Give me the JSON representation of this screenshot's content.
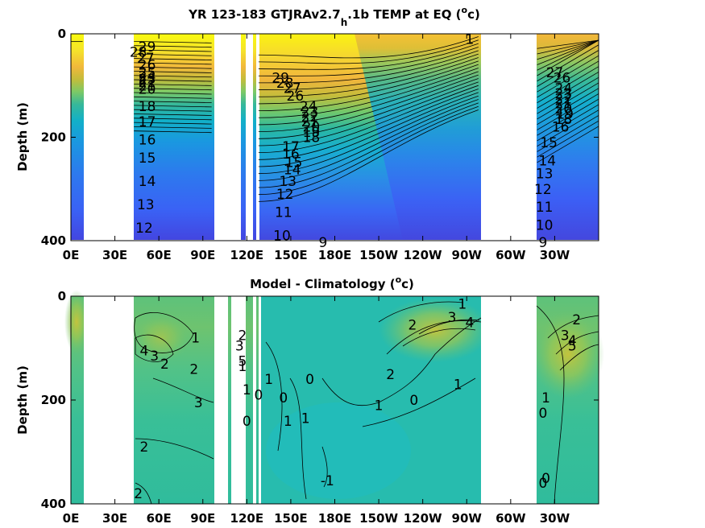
{
  "chart_data": [
    {
      "type": "heatmap",
      "title_main": "YR 123-183 GTJRAv2.7",
      "title_sub": "h",
      "title_tail": ".1b TEMP at EQ (",
      "title_unit_sup": "o",
      "title_unit_tail": "c)",
      "ylabel": "Depth (m)",
      "xlabel": "",
      "x_ticks": [
        "0E",
        "30E",
        "60E",
        "90E",
        "120E",
        "150E",
        "180E",
        "150W",
        "120W",
        "90W",
        "60W",
        "30W"
      ],
      "y_ticks": [
        "0",
        "200",
        "400"
      ],
      "xlim_deg_east": [
        0,
        360
      ],
      "ylim_m": [
        0,
        400
      ],
      "colormap": "parula",
      "clim": [
        8,
        30
      ],
      "land_gaps_deg_east": [
        [
          8,
          43
        ],
        [
          96,
          113
        ],
        [
          119,
          121
        ],
        [
          126,
          128
        ],
        [
          278,
          318
        ]
      ],
      "contour_labels": [
        {
          "text": "29",
          "lon": 52,
          "depth": 25
        },
        {
          "text": "28",
          "lon": 46,
          "depth": 35
        },
        {
          "text": "27",
          "lon": 51,
          "depth": 47
        },
        {
          "text": "26",
          "lon": 52,
          "depth": 60
        },
        {
          "text": "25",
          "lon": 52,
          "depth": 75
        },
        {
          "text": "24",
          "lon": 52,
          "depth": 82
        },
        {
          "text": "23",
          "lon": 52,
          "depth": 87
        },
        {
          "text": "22",
          "lon": 52,
          "depth": 93
        },
        {
          "text": "21",
          "lon": 52,
          "depth": 100
        },
        {
          "text": "20",
          "lon": 52,
          "depth": 107
        },
        {
          "text": "18",
          "lon": 52,
          "depth": 140
        },
        {
          "text": "17",
          "lon": 52,
          "depth": 170
        },
        {
          "text": "16",
          "lon": 52,
          "depth": 205
        },
        {
          "text": "15",
          "lon": 52,
          "depth": 240
        },
        {
          "text": "14",
          "lon": 52,
          "depth": 285
        },
        {
          "text": "13",
          "lon": 51,
          "depth": 330
        },
        {
          "text": "12",
          "lon": 50,
          "depth": 375
        },
        {
          "text": "29",
          "lon": 143,
          "depth": 85
        },
        {
          "text": "28",
          "lon": 146,
          "depth": 95
        },
        {
          "text": "27",
          "lon": 151,
          "depth": 105
        },
        {
          "text": "26",
          "lon": 153,
          "depth": 120
        },
        {
          "text": "24",
          "lon": 162,
          "depth": 140
        },
        {
          "text": "23",
          "lon": 163,
          "depth": 150
        },
        {
          "text": "22",
          "lon": 163,
          "depth": 160
        },
        {
          "text": "21",
          "lon": 163,
          "depth": 170
        },
        {
          "text": "20",
          "lon": 164,
          "depth": 180
        },
        {
          "text": "19",
          "lon": 164,
          "depth": 190
        },
        {
          "text": "18",
          "lon": 164,
          "depth": 200
        },
        {
          "text": "17",
          "lon": 150,
          "depth": 218
        },
        {
          "text": "16",
          "lon": 150,
          "depth": 232
        },
        {
          "text": "15",
          "lon": 152,
          "depth": 248
        },
        {
          "text": "14",
          "lon": 151,
          "depth": 262
        },
        {
          "text": "13",
          "lon": 148,
          "depth": 285
        },
        {
          "text": "12",
          "lon": 146,
          "depth": 310
        },
        {
          "text": "11",
          "lon": 145,
          "depth": 345
        },
        {
          "text": "10",
          "lon": 144,
          "depth": 390
        },
        {
          "text": "9",
          "lon": 172,
          "depth": 430
        },
        {
          "text": "1",
          "lon": 272,
          "depth": 10
        },
        {
          "text": "27",
          "lon": 330,
          "depth": 75
        },
        {
          "text": "26",
          "lon": 335,
          "depth": 85
        },
        {
          "text": "24",
          "lon": 336,
          "depth": 105
        },
        {
          "text": "23",
          "lon": 336,
          "depth": 115
        },
        {
          "text": "22",
          "lon": 336,
          "depth": 125
        },
        {
          "text": "21",
          "lon": 336,
          "depth": 135
        },
        {
          "text": "20",
          "lon": 336,
          "depth": 145
        },
        {
          "text": "19",
          "lon": 337,
          "depth": 155
        },
        {
          "text": "18",
          "lon": 336,
          "depth": 165
        },
        {
          "text": "16",
          "lon": 334,
          "depth": 180
        },
        {
          "text": "15",
          "lon": 326,
          "depth": 210
        },
        {
          "text": "14",
          "lon": 325,
          "depth": 245
        },
        {
          "text": "13",
          "lon": 323,
          "depth": 270
        },
        {
          "text": "12",
          "lon": 322,
          "depth": 300
        },
        {
          "text": "11",
          "lon": 323,
          "depth": 335
        },
        {
          "text": "10",
          "lon": 323,
          "depth": 370
        },
        {
          "text": "9",
          "lon": 322,
          "depth": 410
        }
      ]
    },
    {
      "type": "heatmap",
      "title_main": "Model - Climatology (",
      "title_unit_sup": "o",
      "title_unit_tail": "c)",
      "ylabel": "Depth (m)",
      "xlabel": "",
      "x_ticks": [
        "0E",
        "30E",
        "60E",
        "90E",
        "120E",
        "150E",
        "180E",
        "150W",
        "120W",
        "90W",
        "60W",
        "30W"
      ],
      "y_ticks": [
        "0",
        "200",
        "400"
      ],
      "xlim_deg_east": [
        0,
        360
      ],
      "ylim_m": [
        0,
        400
      ],
      "colormap": "parula",
      "clim": [
        -5,
        6
      ],
      "land_gaps_deg_east": [
        [
          8,
          43
        ],
        [
          96,
          113
        ],
        [
          119,
          121
        ],
        [
          126,
          128
        ],
        [
          278,
          318
        ]
      ],
      "contour_labels": [
        {
          "text": "1",
          "lon": 85,
          "depth": 80
        },
        {
          "text": "4",
          "lon": 50,
          "depth": 105
        },
        {
          "text": "3",
          "lon": 57,
          "depth": 115
        },
        {
          "text": "2",
          "lon": 64,
          "depth": 130
        },
        {
          "text": "2",
          "lon": 84,
          "depth": 140
        },
        {
          "text": "3",
          "lon": 87,
          "depth": 205
        },
        {
          "text": "2",
          "lon": 50,
          "depth": 290
        },
        {
          "text": "2",
          "lon": 46,
          "depth": 380
        },
        {
          "text": "3",
          "lon": 115,
          "depth": 95
        },
        {
          "text": "2",
          "lon": 117,
          "depth": 75
        },
        {
          "text": "1",
          "lon": 117,
          "depth": 135
        },
        {
          "text": "5",
          "lon": 117,
          "depth": 125
        },
        {
          "text": "1",
          "lon": 120,
          "depth": 180
        },
        {
          "text": "0",
          "lon": 128,
          "depth": 190
        },
        {
          "text": "1",
          "lon": 135,
          "depth": 160
        },
        {
          "text": "0",
          "lon": 145,
          "depth": 195
        },
        {
          "text": "0",
          "lon": 163,
          "depth": 160
        },
        {
          "text": "1",
          "lon": 148,
          "depth": 240
        },
        {
          "text": "0",
          "lon": 120,
          "depth": 240
        },
        {
          "text": "1",
          "lon": 160,
          "depth": 235
        },
        {
          "text": "-1",
          "lon": 175,
          "depth": 355
        },
        {
          "text": "1",
          "lon": 267,
          "depth": 15
        },
        {
          "text": "2",
          "lon": 233,
          "depth": 55
        },
        {
          "text": "3",
          "lon": 260,
          "depth": 40
        },
        {
          "text": "4",
          "lon": 272,
          "depth": 50
        },
        {
          "text": "2",
          "lon": 218,
          "depth": 150
        },
        {
          "text": "1",
          "lon": 264,
          "depth": 170
        },
        {
          "text": "1",
          "lon": 210,
          "depth": 210
        },
        {
          "text": "0",
          "lon": 234,
          "depth": 200
        },
        {
          "text": "2",
          "lon": 345,
          "depth": 45
        },
        {
          "text": "3",
          "lon": 337,
          "depth": 75
        },
        {
          "text": "4",
          "lon": 342,
          "depth": 85
        },
        {
          "text": "5",
          "lon": 342,
          "depth": 95
        },
        {
          "text": "0",
          "lon": 322,
          "depth": 225
        },
        {
          "text": "1",
          "lon": 324,
          "depth": 195
        },
        {
          "text": "0",
          "lon": 324,
          "depth": 350
        },
        {
          "text": "0",
          "lon": 322,
          "depth": 360
        }
      ]
    }
  ]
}
